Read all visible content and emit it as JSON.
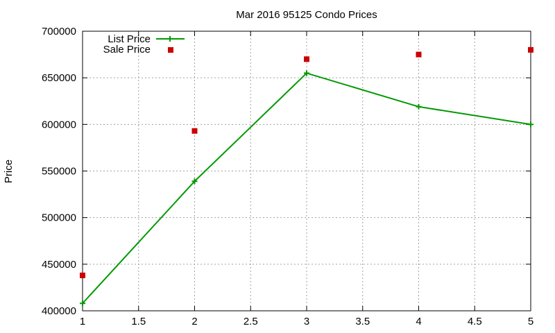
{
  "chart_data": {
    "type": "line",
    "title": "Mar 2016 95125 Condo Prices",
    "xlabel": "",
    "ylabel": "Price",
    "xlim": [
      1,
      5
    ],
    "ylim": [
      400000,
      700000
    ],
    "x_ticks": [
      "1",
      "1.5",
      "2",
      "2.5",
      "3",
      "3.5",
      "4",
      "4.5",
      "5"
    ],
    "y_ticks": [
      "400000",
      "450000",
      "500000",
      "550000",
      "600000",
      "650000",
      "700000"
    ],
    "grid": true,
    "legend_position": "top-left",
    "series": [
      {
        "name": "List Price",
        "style": "line-with-plus-markers",
        "color": "#009900",
        "x": [
          1,
          2,
          3,
          4,
          5
        ],
        "y": [
          408000,
          539000,
          655000,
          619000,
          600000
        ]
      },
      {
        "name": "Sale Price",
        "style": "square-points",
        "color": "#cc0000",
        "x": [
          1,
          2,
          3,
          4,
          5
        ],
        "y": [
          438000,
          593000,
          670000,
          675000,
          680000
        ]
      }
    ]
  }
}
